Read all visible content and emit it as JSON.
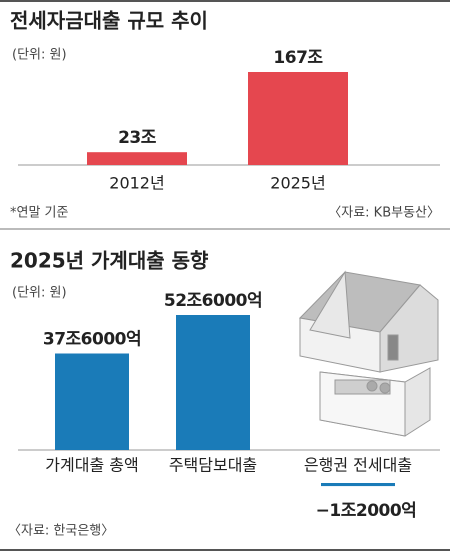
{
  "chart_data": [
    {
      "type": "bar",
      "title": "전세자금대출 규모 추이",
      "subtitle": "(단위: 원)",
      "categories": [
        "2012년",
        "2025년"
      ],
      "values": [
        23,
        167
      ],
      "value_labels": [
        "23조",
        "167조"
      ],
      "color": "#e5474f",
      "note": "*연말 기준",
      "source": "〈자료: KB부동산〉"
    },
    {
      "type": "bar",
      "title": "2025년 가계대출 동향",
      "subtitle": "(단위: 원)",
      "categories": [
        "가계대출 총액",
        "주택담보대출",
        "은행권 전세대출"
      ],
      "values": [
        37.6,
        52.6,
        -1.2
      ],
      "value_labels": [
        "37조6000억",
        "52조6000억",
        "−1조2000억"
      ],
      "color": "#1a7bb8",
      "source": "〈자료: 한국은행〉"
    }
  ]
}
